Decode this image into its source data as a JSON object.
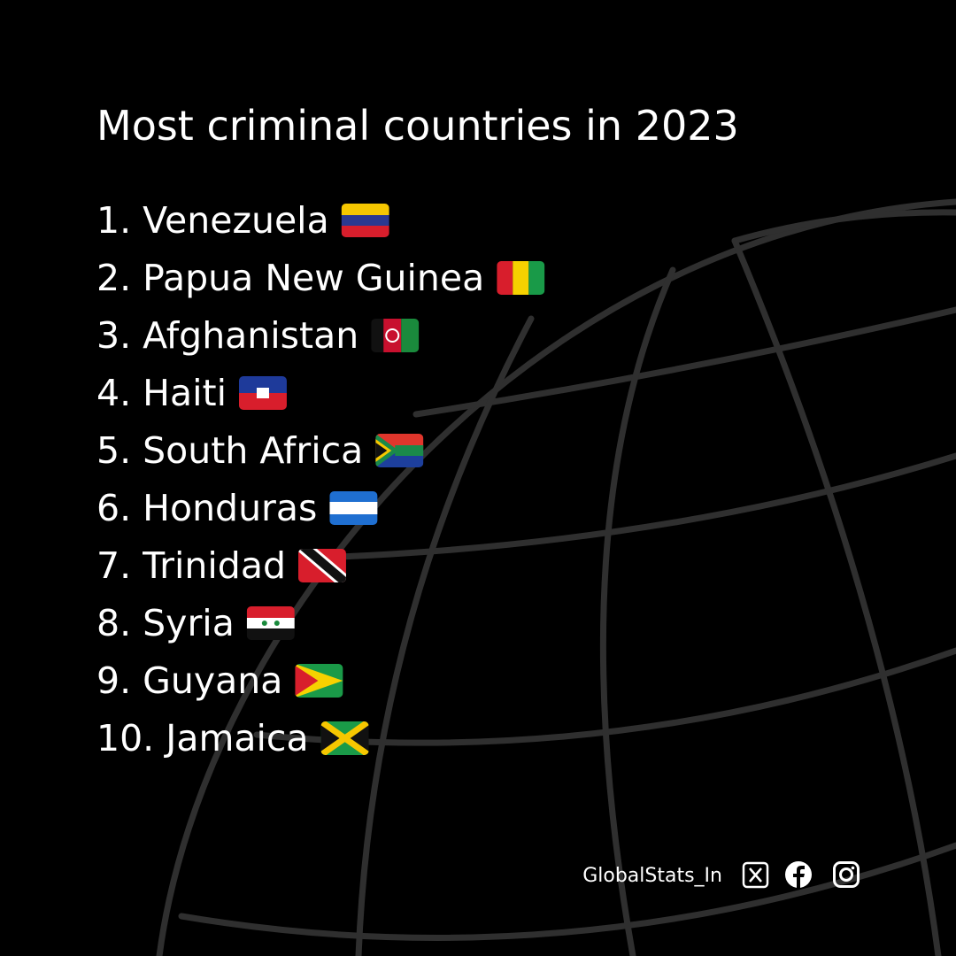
{
  "title": "Most criminal countries in 2023",
  "items": [
    "1. Venezuela",
    "2. Papua New Guinea",
    "3. Afghanistan",
    "4. Haiti",
    "5. South Africa",
    "6. Honduras",
    "7. Trinidad",
    "8. Syria",
    "9. Guyana",
    "10. Jamaica"
  ],
  "footer": {
    "handle": "GlobalStats_In"
  }
}
